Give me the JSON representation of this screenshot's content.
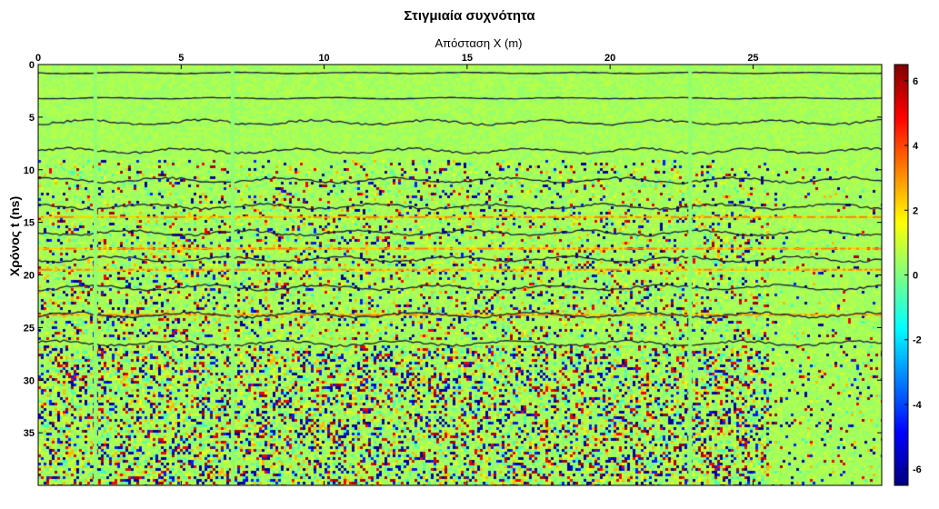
{
  "chart_data": {
    "type": "heatmap",
    "title": "Στιγμιαία συχνότητα",
    "xlabel": "Απόσταση X (m)",
    "ylabel": "Χρόνος t (ns)",
    "x_axis": {
      "position": "top",
      "range": [
        0,
        29.5
      ],
      "ticks": [
        0,
        5,
        10,
        15,
        20,
        25
      ],
      "tick_labels": [
        "0",
        "5",
        "10",
        "15",
        "20",
        "25"
      ]
    },
    "y_axis": {
      "direction": "downward",
      "range": [
        0,
        40
      ],
      "ticks": [
        0,
        5,
        10,
        15,
        20,
        25,
        30,
        35
      ],
      "tick_labels": [
        "0",
        "5",
        "10",
        "15",
        "20",
        "25",
        "30",
        "35"
      ]
    },
    "colorbar": {
      "position": "right",
      "range": [
        -6.5,
        6.5
      ],
      "ticks": [
        6,
        4,
        2,
        0,
        -2,
        -4,
        -6
      ],
      "tick_labels": [
        "6",
        "4",
        "2",
        "0",
        "-2",
        "-4",
        "-6"
      ],
      "colormap": "jet"
    },
    "dominant_value": 0.5,
    "horizontal_reflectors_ns": [
      0.8,
      3.2,
      5.5,
      8.2,
      11.0,
      13.5,
      16.0,
      18.5,
      21.2,
      23.8,
      26.5
    ],
    "bright_band_ns": [
      14.5,
      17.5,
      19.5,
      23.8
    ],
    "noise_zones": [
      {
        "t_start": 9,
        "t_end": 26,
        "level": "moderate"
      },
      {
        "t_start": 26.5,
        "t_end": 40,
        "level": "high"
      }
    ],
    "vertical_traces_m": [
      2.0,
      6.8,
      22.8
    ],
    "grid": false
  }
}
